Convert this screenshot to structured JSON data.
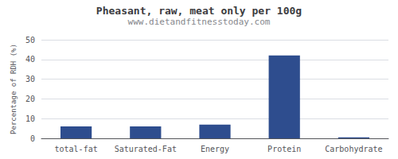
{
  "chart_data": {
    "type": "bar",
    "title": "Pheasant, raw, meat only per 100g",
    "subtitle": "www.dietandfitnesstoday.com",
    "categories": [
      "total-fat",
      "Saturated-Fat",
      "Energy",
      "Protein",
      "Carbohydrate"
    ],
    "values": [
      6,
      6,
      7,
      42,
      0.5
    ],
    "color": "#2e4d8e",
    "ylabel": "Percentage of RDH (%)",
    "ylim": [
      0,
      50
    ],
    "yticks": [
      0,
      10,
      20,
      30,
      40,
      50
    ],
    "grid": true
  }
}
